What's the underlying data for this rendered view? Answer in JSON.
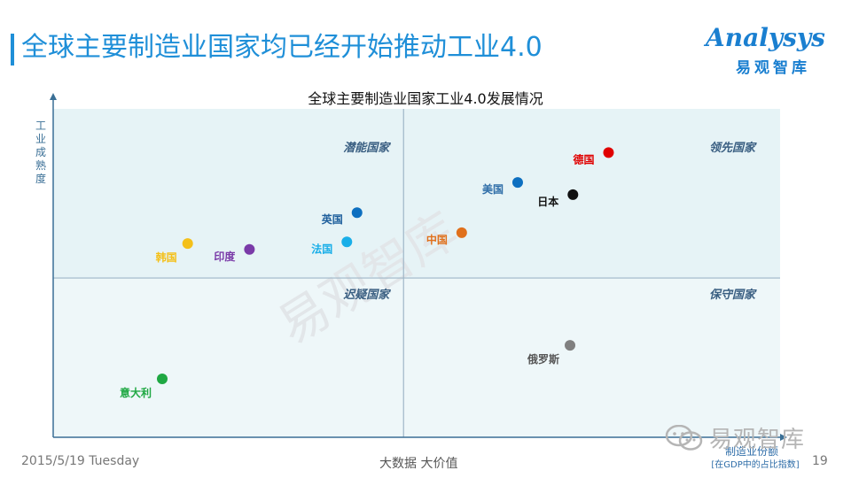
{
  "header": {
    "title": "全球主要制造业国家均已经开始推动工业4.0",
    "logo_main": "Analysys",
    "logo_sub": "易观智库"
  },
  "chart_data": {
    "type": "scatter",
    "title": "全球主要制造业国家工业4.0发展情况",
    "xlabel": "制造业份额",
    "xlabel_sub": "[在GDP中的占比指数]",
    "ylabel": "工业成熟度",
    "xlim": [
      0,
      100
    ],
    "ylim": [
      0,
      100
    ],
    "grid": false,
    "divider": {
      "x": 48.2,
      "y": 48.5
    },
    "quadrants": [
      {
        "label": "潜能国家",
        "pos": "top-left"
      },
      {
        "label": "领先国家",
        "pos": "top-right"
      },
      {
        "label": "迟疑国家",
        "pos": "bottom-left"
      },
      {
        "label": "保守国家",
        "pos": "bottom-right"
      }
    ],
    "points": [
      {
        "name": "德国",
        "x": 76.4,
        "y": 86.7,
        "color": "#e00000",
        "label_side": "left",
        "label_color": "#e00000"
      },
      {
        "name": "美国",
        "x": 63.9,
        "y": 77.6,
        "color": "#0d6fc0",
        "label_side": "left",
        "label_color": "#2e6da8"
      },
      {
        "name": "日本",
        "x": 71.5,
        "y": 73.9,
        "color": "#111111",
        "label_side": "left",
        "label_color": "#111111"
      },
      {
        "name": "中国",
        "x": 56.2,
        "y": 62.3,
        "color": "#e0701c",
        "label_side": "left",
        "label_color": "#e0701c"
      },
      {
        "name": "英国",
        "x": 41.8,
        "y": 68.4,
        "color": "#0d6fc0",
        "label_side": "left",
        "label_color": "#1f5f9c"
      },
      {
        "name": "法国",
        "x": 40.4,
        "y": 59.5,
        "color": "#19aee8",
        "label_side": "left",
        "label_color": "#19aee8"
      },
      {
        "name": "印度",
        "x": 27.0,
        "y": 57.2,
        "color": "#7a3aa8",
        "label_side": "left",
        "label_color": "#7a3aa8"
      },
      {
        "name": "韩国",
        "x": 18.5,
        "y": 59.0,
        "color": "#f4c01a",
        "label_side": "below-left",
        "label_color": "#f4c01a"
      },
      {
        "name": "俄罗斯",
        "x": 71.1,
        "y": 28.0,
        "color": "#808080",
        "label_side": "below-left",
        "label_color": "#555555"
      },
      {
        "name": "意大利",
        "x": 15.0,
        "y": 17.8,
        "color": "#1fa843",
        "label_side": "below-left",
        "label_color": "#1fa843"
      }
    ]
  },
  "watermark": "易观智库",
  "footer": {
    "date": "2015/5/19 Tuesday",
    "center": "大数据   大价值",
    "page": "19",
    "wechat": "易观智库"
  }
}
